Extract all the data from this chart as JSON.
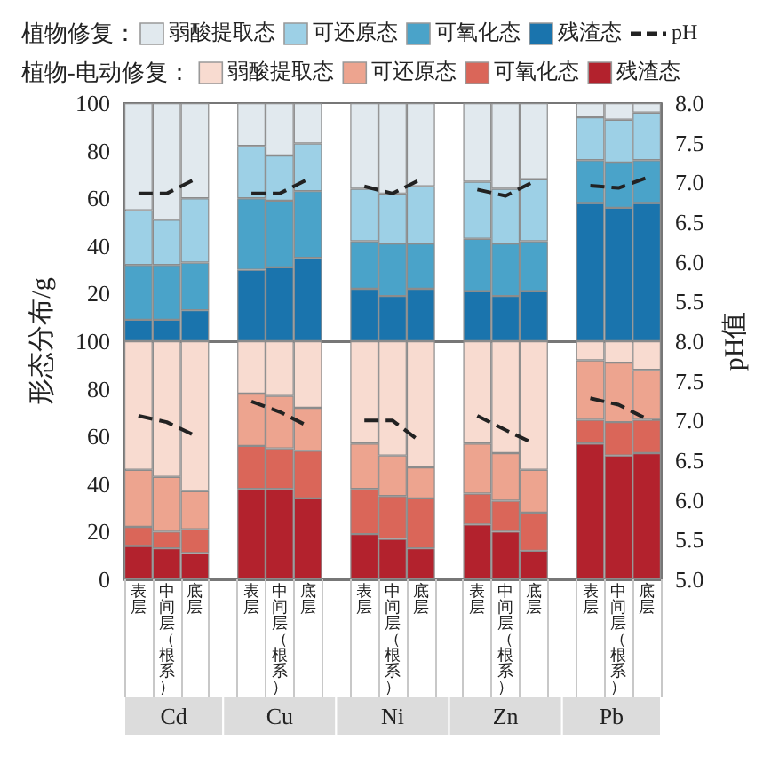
{
  "chart_data": [
    {
      "type": "bar",
      "stacked": true,
      "legend": "top",
      "legend_title": "植物修复：",
      "ylabel": "形态分布/g",
      "y2label": "pH值",
      "tick_labels": "y",
      "categories": [
        "表层",
        "中间层（根系）",
        "底层",
        null,
        "表层",
        "中间层（根系）",
        "底层",
        null,
        "表层",
        "中间层（根系）",
        "底层",
        null,
        "表层",
        "中间层（根系）",
        "底层",
        null,
        "表层",
        "中间层（根系）",
        "底层"
      ],
      "ylim": [
        0,
        100
      ],
      "yticks": [
        20,
        40,
        60,
        80,
        100
      ],
      "y2lim": [
        5,
        8
      ],
      "y2ticks": [
        {
          "value": 5.5,
          "label": "5.5"
        },
        {
          "value": 6,
          "label": "6.0"
        },
        {
          "value": 6.5,
          "label": "6.5"
        },
        {
          "value": 7,
          "label": "7.0"
        },
        {
          "value": 7.5,
          "label": "7.5"
        },
        {
          "value": 8,
          "label": "8.0"
        }
      ],
      "series": [
        {
          "name": "残渣态",
          "color": "#1a74ad",
          "values": [
            9,
            9,
            13,
            null,
            30,
            31,
            35,
            null,
            22,
            19,
            22,
            null,
            21,
            19,
            21,
            null,
            58,
            56,
            58
          ]
        },
        {
          "name": "可氧化态",
          "color": "#4aa3c9",
          "values": [
            23,
            23,
            20,
            null,
            30,
            28,
            28,
            null,
            20,
            22,
            19,
            null,
            22,
            22,
            21,
            null,
            18,
            19,
            18
          ]
        },
        {
          "name": "可还原态",
          "color": "#9dd0e6",
          "values": [
            23,
            19,
            27,
            null,
            22,
            19,
            20,
            null,
            22,
            21,
            24,
            null,
            24,
            23,
            26,
            null,
            18,
            18,
            20
          ]
        },
        {
          "name": "弱酸提取态",
          "color": "#e1e9ee",
          "values": [
            45,
            49,
            40,
            null,
            18,
            22,
            17,
            null,
            36,
            38,
            35,
            null,
            33,
            36,
            32,
            null,
            6,
            7,
            4
          ]
        },
        {
          "name": "pH",
          "type": "line",
          "axis": "y2",
          "color": "#222222",
          "line_style": "dashed",
          "marker": "none",
          "values": [
            6.86,
            6.86,
            7.04,
            null,
            6.86,
            6.86,
            7.04,
            null,
            6.95,
            6.86,
            7.04,
            null,
            6.91,
            6.83,
            7.01,
            null,
            6.96,
            6.93,
            7.06
          ]
        }
      ]
    },
    {
      "type": "bar",
      "stacked": true,
      "legend": "top",
      "legend_title": "植物-电动修复：",
      "annotations": [
        "Cd",
        "Cu",
        "Ni",
        "Zn",
        "Pb"
      ],
      "categories": [
        "表层",
        "中间层（根系）",
        "底层",
        null,
        "表层",
        "中间层（根系）",
        "底层",
        null,
        "表层",
        "中间层（根系）",
        "底层",
        null,
        "表层",
        "中间层（根系）",
        "底层",
        null,
        "表层",
        "中间层（根系）",
        "底层"
      ],
      "ylim": [
        0,
        100
      ],
      "yticks": [
        0,
        20,
        40,
        60,
        80,
        100
      ],
      "y2lim": [
        5,
        8
      ],
      "y2ticks": [
        {
          "value": 5,
          "label": "5.0"
        },
        {
          "value": 5.5,
          "label": "5.5"
        },
        {
          "value": 6,
          "label": "6.0"
        },
        {
          "value": 6.5,
          "label": "6.5"
        },
        {
          "value": 7,
          "label": "7.0"
        },
        {
          "value": 7.5,
          "label": "7.5"
        },
        {
          "value": 8,
          "label": "8.0"
        }
      ],
      "series": [
        {
          "name": "残渣态",
          "color": "#b3222d",
          "values": [
            14,
            13,
            11,
            null,
            38,
            38,
            34,
            null,
            19,
            17,
            13,
            null,
            23,
            20,
            12,
            null,
            57,
            52,
            53
          ]
        },
        {
          "name": "可氧化态",
          "color": "#da6659",
          "values": [
            8,
            7,
            10,
            null,
            18,
            17,
            20,
            null,
            19,
            18,
            21,
            null,
            13,
            13,
            16,
            null,
            10,
            14,
            14
          ]
        },
        {
          "name": "可还原态",
          "color": "#eda48f",
          "values": [
            24,
            23,
            16,
            null,
            22,
            22,
            18,
            null,
            19,
            17,
            13,
            null,
            21,
            20,
            18,
            null,
            25,
            25,
            21
          ]
        },
        {
          "name": "弱酸提取态",
          "color": "#f8dbd0",
          "values": [
            54,
            57,
            63,
            null,
            22,
            23,
            28,
            null,
            43,
            48,
            53,
            null,
            43,
            47,
            54,
            null,
            8,
            9,
            12
          ]
        },
        {
          "type": "line",
          "axis": "y2",
          "color": "#222222",
          "line_style": "dashed",
          "marker": "none",
          "values": [
            7.06,
            6.98,
            6.81,
            null,
            7.24,
            7.11,
            6.93,
            null,
            7.0,
            7.0,
            6.73,
            null,
            7.06,
            6.88,
            6.71,
            null,
            7.28,
            7.2,
            7.02
          ]
        }
      ]
    }
  ]
}
